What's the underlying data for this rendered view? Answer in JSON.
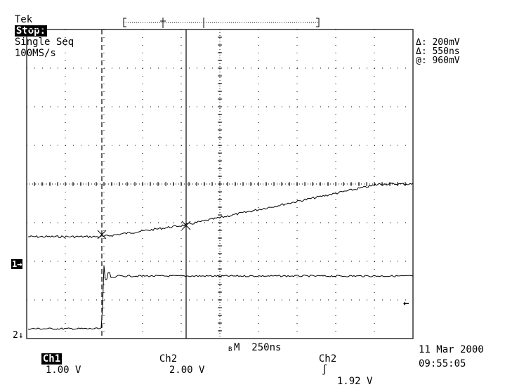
{
  "header": {
    "brand": "Tek",
    "state": "Stop:",
    "mode": "Single Seq",
    "sample_rate": "100MS/s"
  },
  "readouts": {
    "delta_v": "Δ: 200mV",
    "delta_t": "Δ: 550ns",
    "at_v": "@: 960mV"
  },
  "markers": {
    "ch1": "1→",
    "ch2": "2↓",
    "trigger_level": "←"
  },
  "bottom_bar": {
    "ch1_label": "Ch1",
    "ch1_scale": "1.00 V",
    "ch2_label": "Ch2",
    "ch2_scale": "2.00 V",
    "bw_symbol": "B",
    "timebase": "M  250ns",
    "trigger_source": "Ch2",
    "trigger_slope": "∫",
    "trigger_level": "1.92 V"
  },
  "datetime": {
    "date": "11 Mar 2000",
    "time": "09:55:05"
  },
  "colors": {
    "trace": "#000000",
    "grid": "#000000",
    "background": "#ffffff"
  }
}
